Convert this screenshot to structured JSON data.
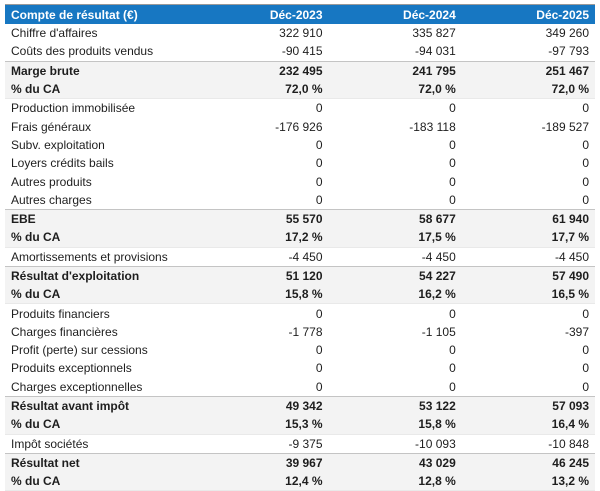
{
  "chart_data": {
    "type": "table",
    "title": "Compte de résultat (€)",
    "columns": [
      "Compte de résultat (€)",
      "Déc-2023",
      "Déc-2024",
      "Déc-2025"
    ],
    "rows": [
      {
        "label": "Chiffre d'affaires",
        "values": [
          "322 910",
          "335 827",
          "349 260"
        ],
        "style": "normal"
      },
      {
        "label": "Coûts des produits vendus",
        "values": [
          "-90 415",
          "-94 031",
          "-97 793"
        ],
        "style": "normal"
      },
      {
        "label": "Marge brute",
        "values": [
          "232 495",
          "241 795",
          "251 467"
        ],
        "style": "total"
      },
      {
        "label": "% du CA",
        "values": [
          "72,0 %",
          "72,0 %",
          "72,0 %"
        ],
        "style": "pct"
      },
      {
        "label": "Production immobilisée",
        "values": [
          "0",
          "0",
          "0"
        ],
        "style": "normal"
      },
      {
        "label": "Frais généraux",
        "values": [
          "-176 926",
          "-183 118",
          "-189 527"
        ],
        "style": "normal"
      },
      {
        "label": "Subv. exploitation",
        "values": [
          "0",
          "0",
          "0"
        ],
        "style": "normal"
      },
      {
        "label": "Loyers crédits bails",
        "values": [
          "0",
          "0",
          "0"
        ],
        "style": "normal"
      },
      {
        "label": "Autres produits",
        "values": [
          "0",
          "0",
          "0"
        ],
        "style": "normal"
      },
      {
        "label": "Autres charges",
        "values": [
          "0",
          "0",
          "0"
        ],
        "style": "normal"
      },
      {
        "label": "EBE",
        "values": [
          "55 570",
          "58 677",
          "61 940"
        ],
        "style": "total"
      },
      {
        "label": "% du CA",
        "values": [
          "17,2 %",
          "17,5 %",
          "17,7 %"
        ],
        "style": "pct"
      },
      {
        "label": "Amortissements et provisions",
        "values": [
          "-4 450",
          "-4 450",
          "-4 450"
        ],
        "style": "normal"
      },
      {
        "label": "Résultat d'exploitation",
        "values": [
          "51 120",
          "54 227",
          "57 490"
        ],
        "style": "total"
      },
      {
        "label": "% du CA",
        "values": [
          "15,8 %",
          "16,2 %",
          "16,5 %"
        ],
        "style": "pct"
      },
      {
        "label": "Produits financiers",
        "values": [
          "0",
          "0",
          "0"
        ],
        "style": "normal"
      },
      {
        "label": "Charges financières",
        "values": [
          "-1 778",
          "-1 105",
          "-397"
        ],
        "style": "normal"
      },
      {
        "label": "Profit (perte) sur cessions",
        "values": [
          "0",
          "0",
          "0"
        ],
        "style": "normal"
      },
      {
        "label": "Produits exceptionnels",
        "values": [
          "0",
          "0",
          "0"
        ],
        "style": "normal"
      },
      {
        "label": "Charges exceptionnelles",
        "values": [
          "0",
          "0",
          "0"
        ],
        "style": "normal"
      },
      {
        "label": "Résultat avant impôt",
        "values": [
          "49 342",
          "53 122",
          "57 093"
        ],
        "style": "total"
      },
      {
        "label": "% du CA",
        "values": [
          "15,3 %",
          "15,8 %",
          "16,4 %"
        ],
        "style": "pct"
      },
      {
        "label": "Impôt sociétés",
        "values": [
          "-9 375",
          "-10 093",
          "-10 848"
        ],
        "style": "normal"
      },
      {
        "label": "Résultat net",
        "values": [
          "39 967",
          "43 029",
          "46 245"
        ],
        "style": "total"
      },
      {
        "label": "% du CA",
        "values": [
          "12,4 %",
          "12,8 %",
          "13,2 %"
        ],
        "style": "pct"
      }
    ],
    "layout": {
      "header_bg": "#1777c2",
      "header_text_color": "#ffffff",
      "section_row_bg": "#f3f3f3",
      "section_border_color": "#c4c4c4",
      "table_top_border_color": "#999999",
      "body_text_color": "#1e1e1e"
    }
  }
}
